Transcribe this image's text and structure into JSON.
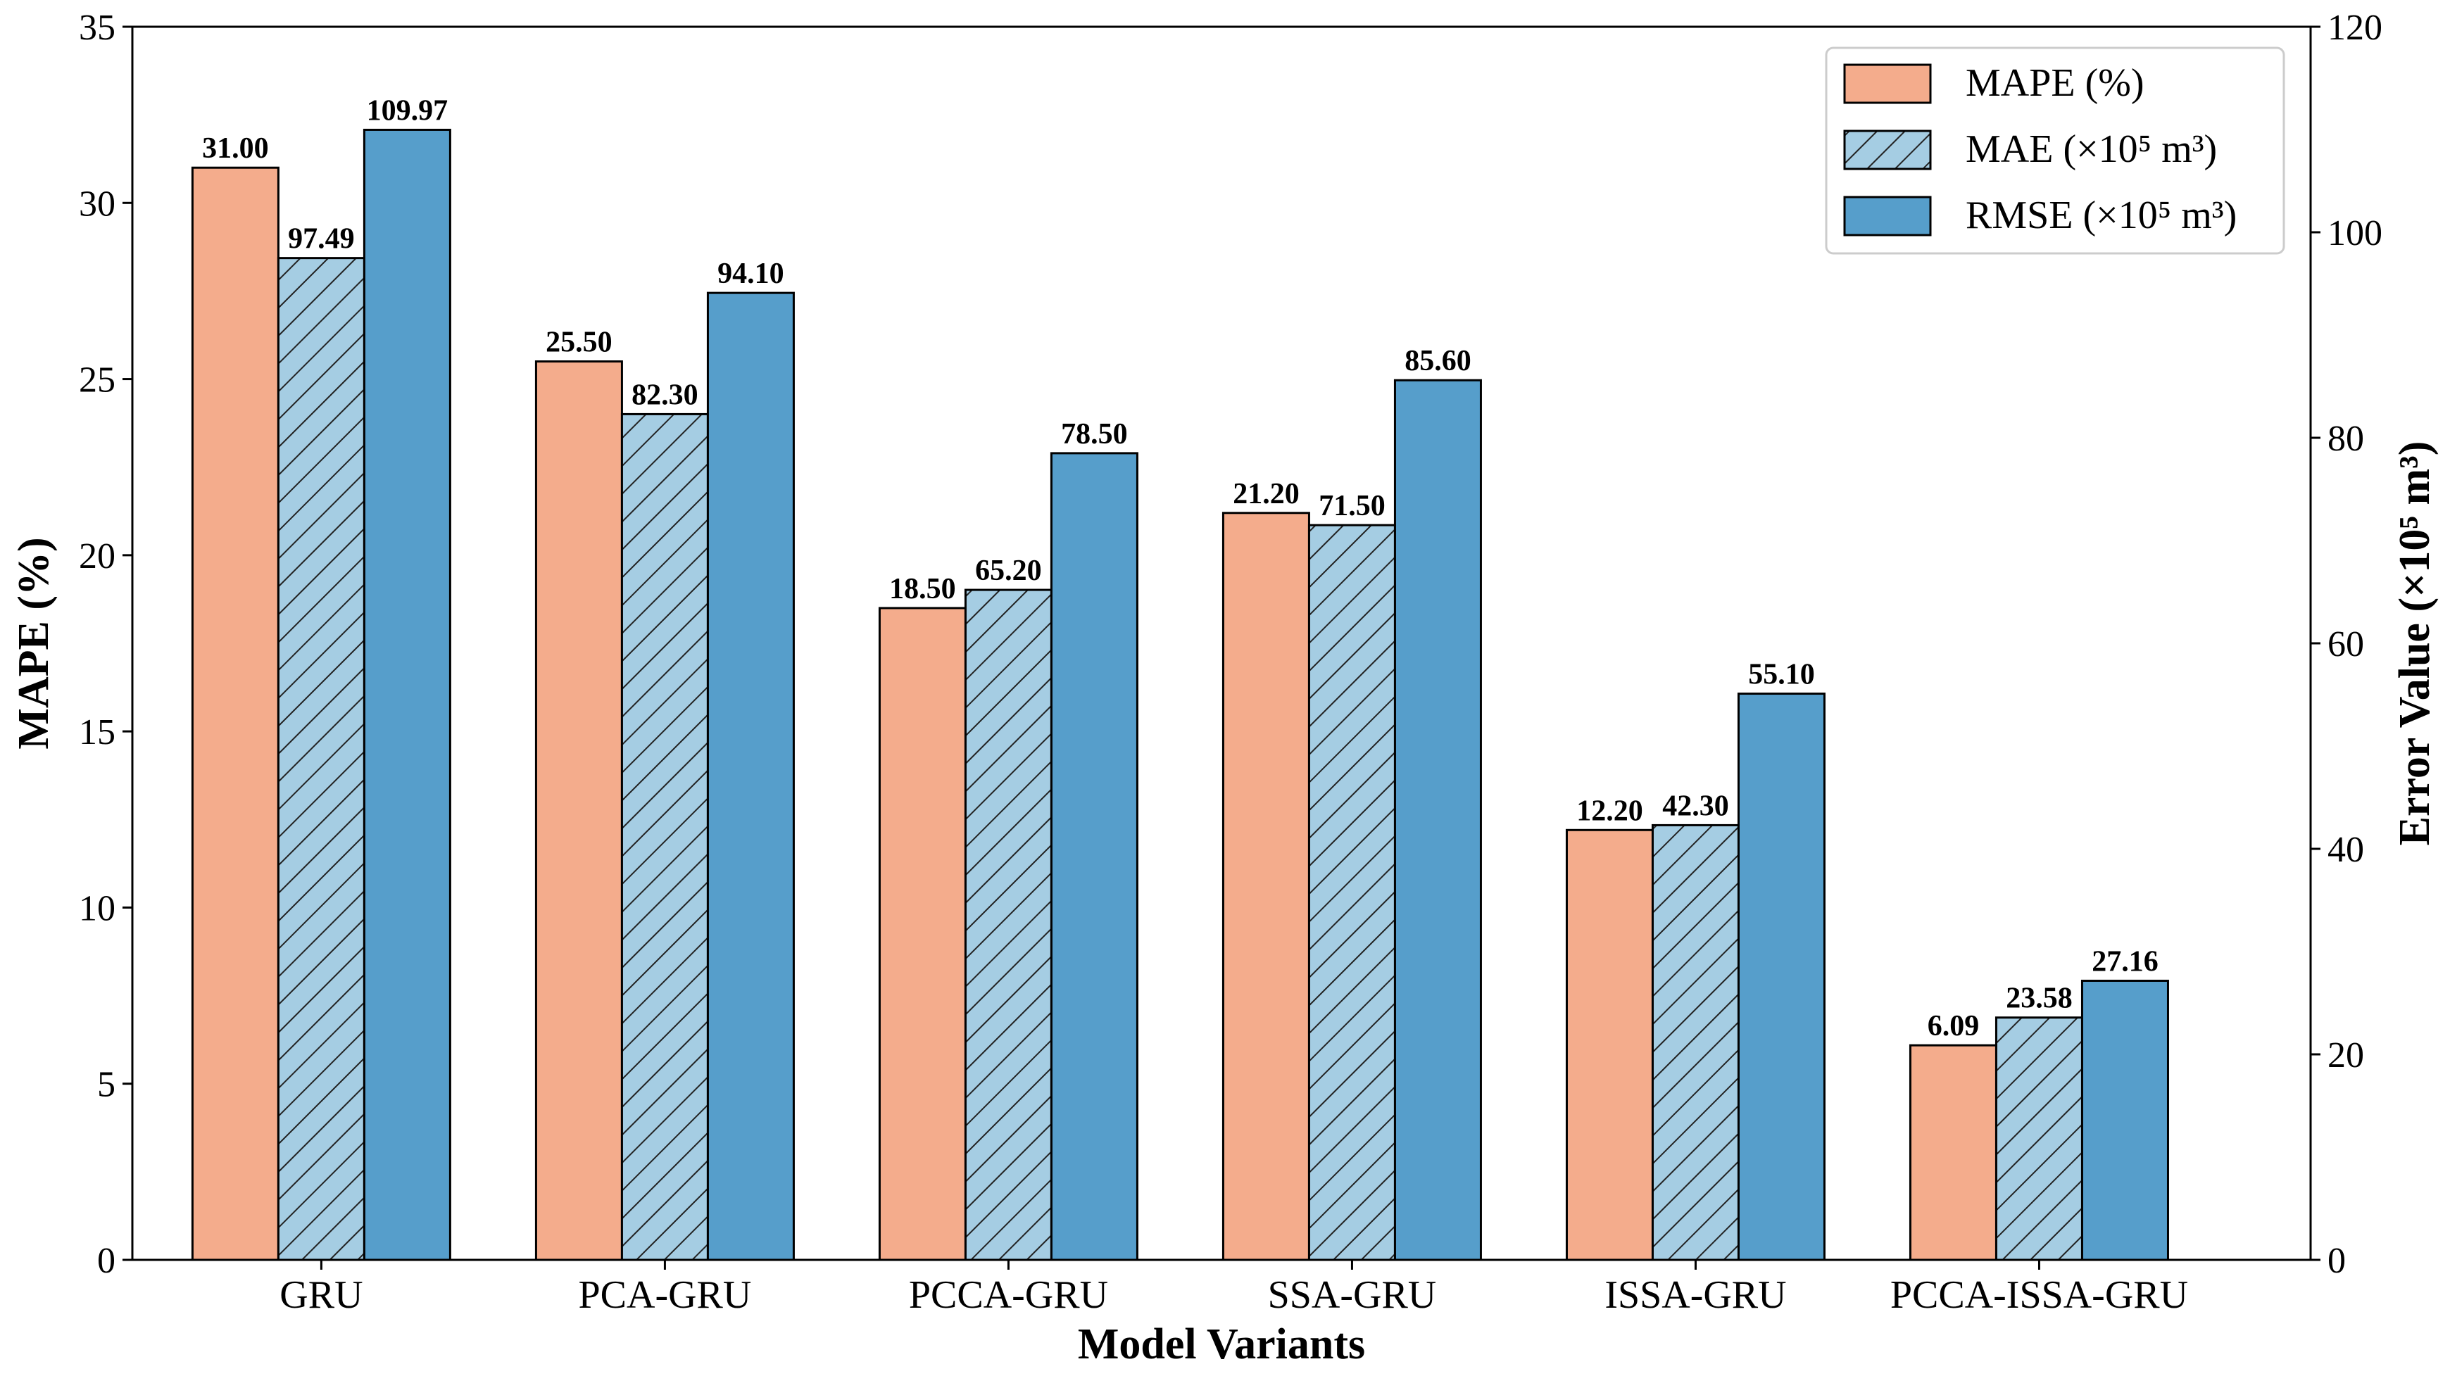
{
  "chart_data": {
    "type": "bar",
    "categories": [
      "GRU",
      "PCA-GRU",
      "PCCA-GRU",
      "SSA-GRU",
      "ISSA-GRU",
      "PCCA-ISSA-GRU"
    ],
    "series": [
      {
        "name": "MAPE (%)",
        "axis": "left",
        "values": [
          31.0,
          25.5,
          18.5,
          21.2,
          12.2,
          6.09
        ],
        "labels": [
          "31.00",
          "25.50",
          "18.50",
          "21.20",
          "12.20",
          "6.09"
        ],
        "color": "#f4ac8c",
        "hatch": false
      },
      {
        "name": "MAE (×10⁵ m³)",
        "axis": "right",
        "values": [
          97.49,
          82.3,
          65.2,
          71.5,
          42.3,
          23.58
        ],
        "labels": [
          "97.49",
          "82.30",
          "65.20",
          "71.50",
          "42.30",
          "23.58"
        ],
        "color": "#a5cde3",
        "hatch": true
      },
      {
        "name": "RMSE (×10⁵ m³)",
        "axis": "right",
        "values": [
          109.97,
          94.1,
          78.5,
          85.6,
          55.1,
          27.16
        ],
        "labels": [
          "109.97",
          "94.10",
          "78.50",
          "85.60",
          "55.10",
          "27.16"
        ],
        "color": "#569ecb",
        "hatch": false
      }
    ],
    "xlabel": "Model Variants",
    "ylabel_left": "MAPE (%)",
    "ylabel_right": "Error Value (×10⁵ m³)",
    "ylim_left": [
      0,
      35
    ],
    "ylim_right": [
      0,
      120
    ],
    "yticks_left": [
      "0",
      "5",
      "10",
      "15",
      "20",
      "25",
      "30",
      "35"
    ],
    "yticks_right": [
      "0",
      "20",
      "40",
      "60",
      "80",
      "100",
      "120"
    ],
    "legend": {
      "position": "top-right"
    },
    "grid": false
  }
}
